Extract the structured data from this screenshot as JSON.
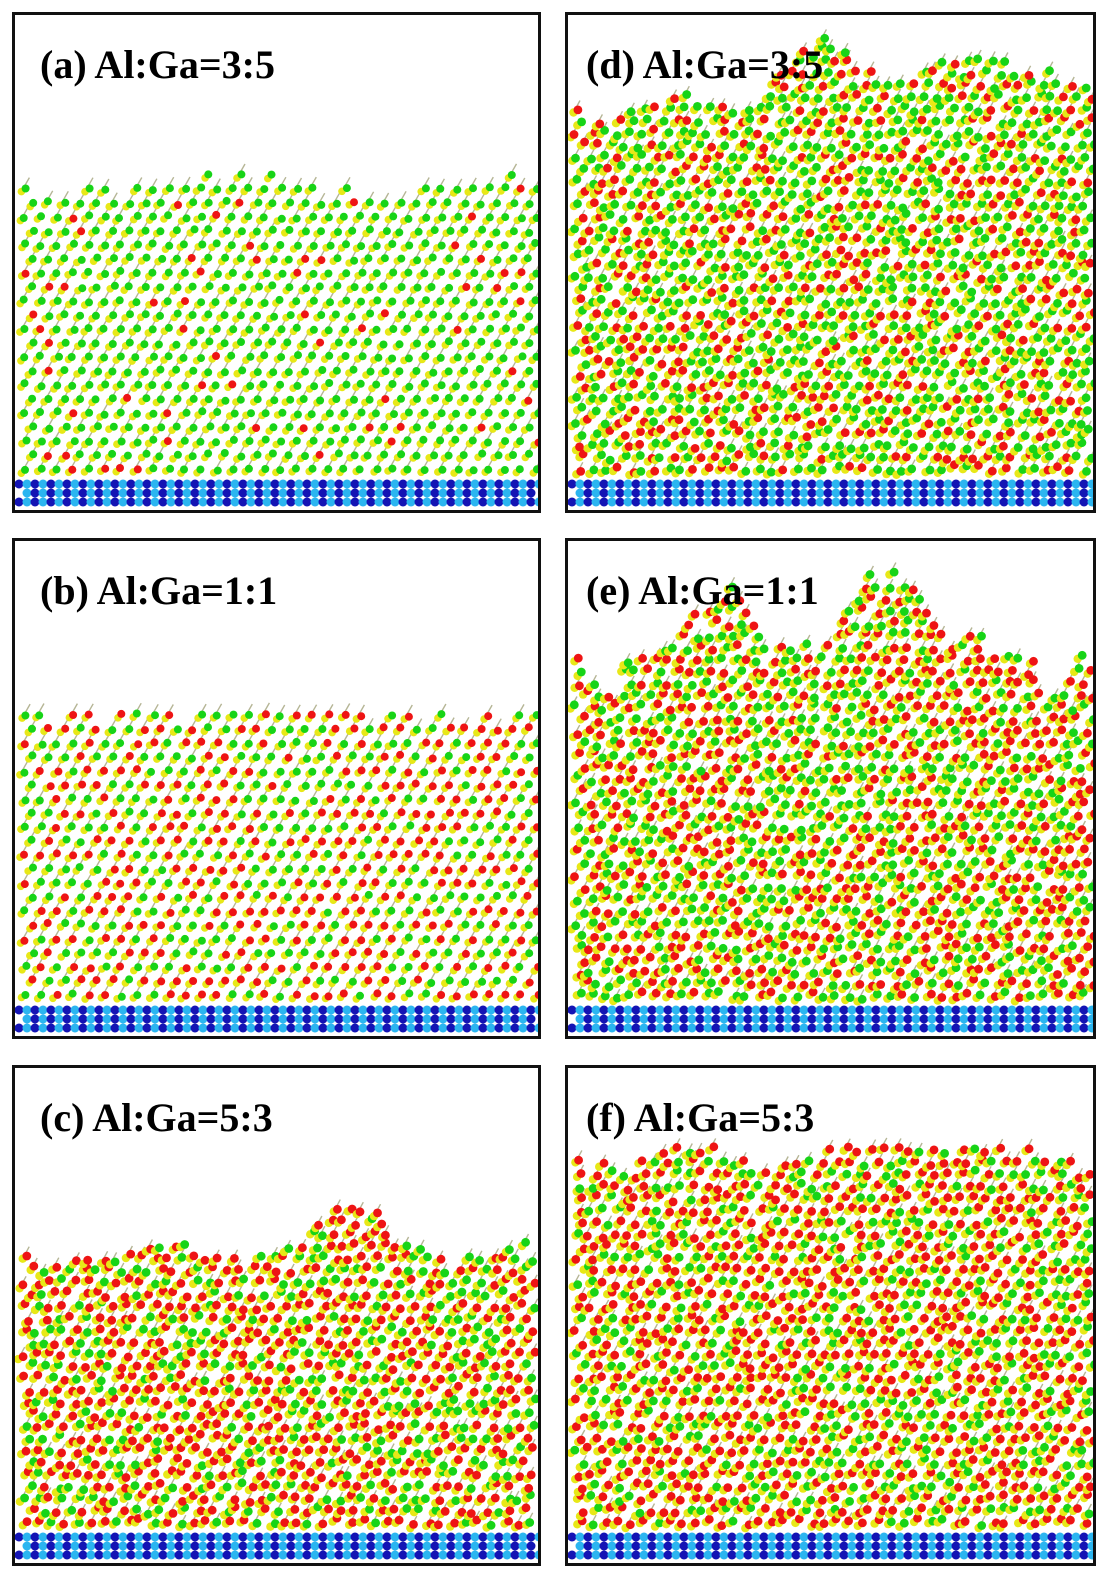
{
  "legend_colors": {
    "yellow_atom": "#e8e817",
    "green_atom": "#17d417",
    "red_atom": "#ee1414",
    "substrate_blue": "#1414b4",
    "substrate_light_blue": "#2bb5f0",
    "bond": "#7a7a40"
  },
  "panels": [
    {
      "label": "(a) Al:Ga=3:5",
      "al_fraction": 0.375,
      "surface": "flat"
    },
    {
      "label": "(b) Al:Ga=1:1",
      "al_fraction": 0.5,
      "surface": "flat"
    },
    {
      "label": "(c) Al:Ga=5:3",
      "al_fraction": 0.625,
      "surface": "one-hump"
    },
    {
      "label": "(d) Al:Ga=3:5",
      "al_fraction": 0.375,
      "surface": "islands"
    },
    {
      "label": "(e) Al:Ga=1:1",
      "al_fraction": 0.5,
      "surface": "islands"
    },
    {
      "label": "(f) Al:Ga=5:3",
      "al_fraction": 0.625,
      "surface": "rough"
    }
  ]
}
